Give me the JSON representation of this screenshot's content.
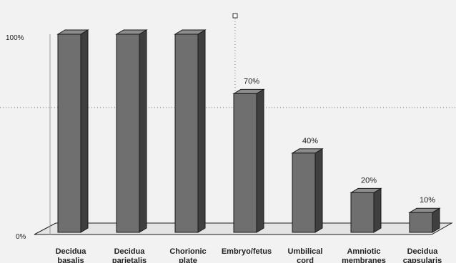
{
  "chart_data": {
    "type": "bar",
    "categories": [
      [
        "Decidua",
        "basalis"
      ],
      [
        "Decidua",
        "parietalis"
      ],
      [
        "Chorionic",
        "plate"
      ],
      [
        "Embryo/fetus"
      ],
      [
        "Umbilical",
        "cord"
      ],
      [
        "Amniotic",
        "membranes"
      ],
      [
        "Decidua",
        "capsularis"
      ]
    ],
    "values": [
      100,
      100,
      100,
      70,
      40,
      20,
      10
    ],
    "data_labels": [
      "",
      "",
      "",
      "70%",
      "40%",
      "20%",
      "10%"
    ],
    "y_ticks": [
      "0%",
      "100%"
    ],
    "ylim": [
      0,
      100
    ],
    "grid": false,
    "three_d": true,
    "reference_line": {
      "orientation": "horizontal",
      "value": 63,
      "style": "dotted"
    },
    "colors": {
      "bar_front": "#6f6f6f",
      "bar_side": "#3f3f3f",
      "bar_top": "#8c8c8c",
      "outline": "#1a1a1a",
      "background": "#f2f2f2"
    }
  }
}
